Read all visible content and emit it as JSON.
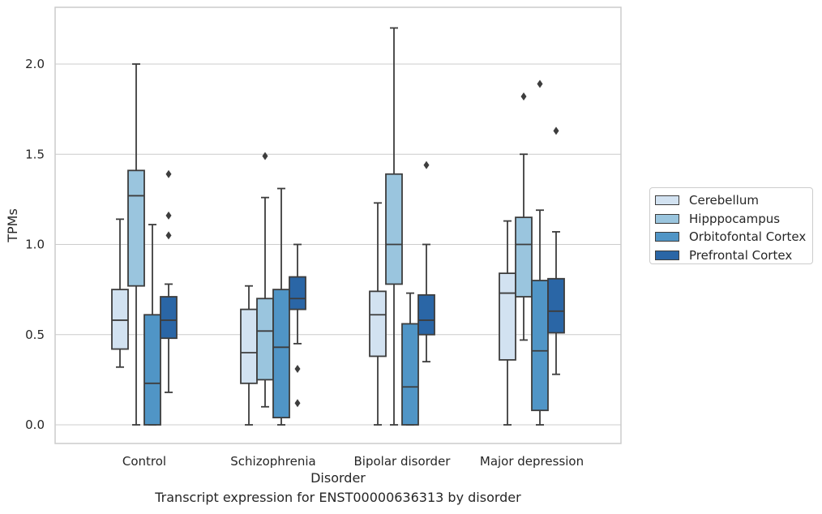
{
  "chart_data": {
    "type": "box",
    "caption": "Transcript expression for ENST00000636313 by disorder",
    "xlabel": "Disorder",
    "ylabel": "TPMs",
    "ylim": [
      -0.1,
      2.32
    ],
    "yticks": [
      "0.0",
      "0.5",
      "1.0",
      "1.5",
      "2.0"
    ],
    "ytick_values": [
      0.0,
      0.5,
      1.0,
      1.5,
      2.0
    ],
    "categories": [
      "Control",
      "Schizophrenia",
      "Bipolar disorder",
      "Major depression"
    ],
    "grid": "horizontal",
    "legend_position": "right",
    "series": [
      {
        "name": "Cerebellum",
        "color": "#d2e2f1",
        "boxes": [
          {
            "whislo": 0.32,
            "q1": 0.42,
            "med": 0.58,
            "q3": 0.75,
            "whishi": 1.14,
            "fliers": []
          },
          {
            "whislo": 0.0,
            "q1": 0.23,
            "med": 0.4,
            "q3": 0.64,
            "whishi": 0.77,
            "fliers": []
          },
          {
            "whislo": 0.0,
            "q1": 0.38,
            "med": 0.61,
            "q3": 0.74,
            "whishi": 1.23,
            "fliers": []
          },
          {
            "whislo": 0.0,
            "q1": 0.36,
            "med": 0.73,
            "q3": 0.84,
            "whishi": 1.13,
            "fliers": []
          }
        ]
      },
      {
        "name": "Hipppocampus",
        "color": "#9ac5de",
        "boxes": [
          {
            "whislo": 0.0,
            "q1": 0.77,
            "med": 1.27,
            "q3": 1.41,
            "whishi": 2.0,
            "fliers": []
          },
          {
            "whislo": 0.1,
            "q1": 0.25,
            "med": 0.52,
            "q3": 0.7,
            "whishi": 1.26,
            "fliers": [
              1.49
            ]
          },
          {
            "whislo": 0.0,
            "q1": 0.78,
            "med": 1.0,
            "q3": 1.39,
            "whishi": 2.2,
            "fliers": []
          },
          {
            "whislo": 0.47,
            "q1": 0.71,
            "med": 1.0,
            "q3": 1.15,
            "whishi": 1.5,
            "fliers": [
              1.82
            ]
          }
        ]
      },
      {
        "name": "Orbitofontal Cortex",
        "color": "#5095c6",
        "boxes": [
          {
            "whislo": 0.0,
            "q1": 0.0,
            "med": 0.23,
            "q3": 0.61,
            "whishi": 1.11,
            "fliers": []
          },
          {
            "whislo": 0.0,
            "q1": 0.04,
            "med": 0.43,
            "q3": 0.75,
            "whishi": 1.31,
            "fliers": []
          },
          {
            "whislo": 0.0,
            "q1": 0.0,
            "med": 0.21,
            "q3": 0.56,
            "whishi": 0.73,
            "fliers": []
          },
          {
            "whislo": 0.0,
            "q1": 0.08,
            "med": 0.41,
            "q3": 0.8,
            "whishi": 1.19,
            "fliers": [
              1.89
            ]
          }
        ]
      },
      {
        "name": "Prefrontal Cortex",
        "color": "#2a66a6",
        "boxes": [
          {
            "whislo": 0.18,
            "q1": 0.48,
            "med": 0.58,
            "q3": 0.71,
            "whishi": 0.78,
            "fliers": [
              1.05,
              1.16,
              1.39
            ]
          },
          {
            "whislo": 0.45,
            "q1": 0.64,
            "med": 0.7,
            "q3": 0.82,
            "whishi": 1.0,
            "fliers": [
              0.12,
              0.31
            ]
          },
          {
            "whislo": 0.35,
            "q1": 0.5,
            "med": 0.58,
            "q3": 0.72,
            "whishi": 1.0,
            "fliers": [
              1.44
            ]
          },
          {
            "whislo": 0.28,
            "q1": 0.51,
            "med": 0.63,
            "q3": 0.81,
            "whishi": 1.07,
            "fliers": [
              1.63
            ]
          }
        ]
      }
    ]
  }
}
